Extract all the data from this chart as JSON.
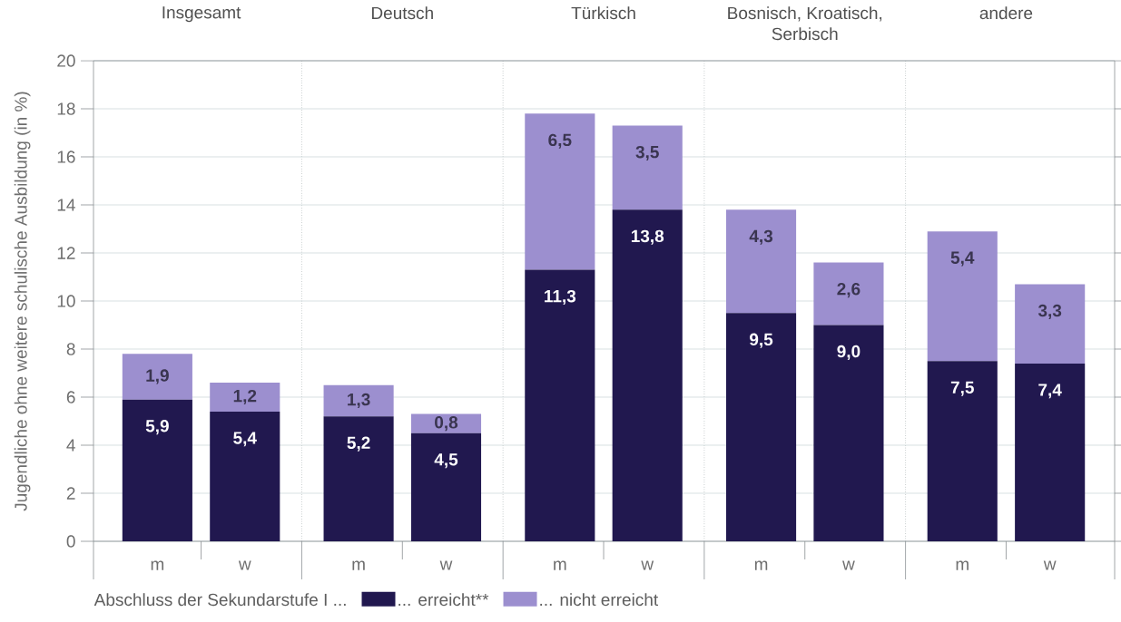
{
  "chart_data": {
    "type": "bar",
    "stacked": true,
    "ylabel": "Jugendliche ohne weitere schulische Ausbildung (in %)",
    "categories": [
      "m",
      "w",
      "m",
      "w",
      "m",
      "w",
      "m",
      "w",
      "m",
      "w"
    ],
    "annotations": [
      "Insgesamt",
      "Deutsch",
      "Türkisch",
      "Bosnisch, Kroatisch, Serbisch",
      "andere"
    ],
    "legend_title": "Abschluss der Sekundarstufe I ...",
    "series": [
      {
        "name": "... erreicht**",
        "color": "#21184f",
        "values": [
          5.9,
          5.4,
          5.2,
          4.5,
          11.3,
          13.8,
          9.5,
          9.0,
          7.5,
          7.4
        ],
        "value_labels": [
          "5,9",
          "5,4",
          "5,2",
          "4,5",
          "11,3",
          "13,8",
          "9,5",
          "9,0",
          "7,5",
          "7,4"
        ]
      },
      {
        "name": "... nicht erreicht",
        "color": "#9c8fcf",
        "values": [
          1.9,
          1.2,
          1.3,
          0.8,
          6.5,
          3.5,
          4.3,
          2.6,
          5.4,
          3.3
        ],
        "value_labels": [
          "1,9",
          "1,2",
          "1,3",
          "0,8",
          "6,5",
          "3,5",
          "4,3",
          "2,6",
          "5,4",
          "3,3"
        ]
      }
    ],
    "ylim": [
      0,
      20
    ],
    "yticks": [
      0,
      2,
      4,
      6,
      8,
      10,
      12,
      14,
      16,
      18,
      20
    ],
    "grid": "y",
    "legend": "bottom"
  }
}
